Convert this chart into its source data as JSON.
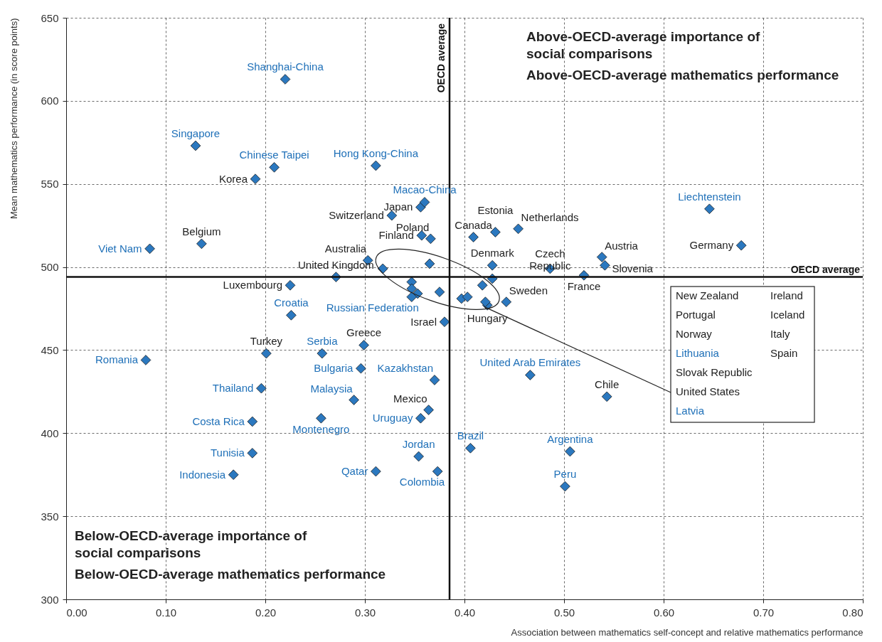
{
  "chart_data": {
    "type": "scatter",
    "xlabel": "Association between mathematics self-concept and relative mathematics performance",
    "ylabel": "Mean mathematics performance (in score points)",
    "annotations": [
      "Above-OECD-average importance of social comparisons",
      "Above-OECD-average mathematics performance",
      "Below-OECD-average importance of social comparisons",
      "Below-OECD-average mathematics performance",
      "New Zealand",
      "Portugal",
      "Norway",
      "Lithuania",
      "Slovak Republic",
      {
        "text": "United States",
        "x": 0.42,
        "y": 476
      },
      "Latvia",
      "Ireland",
      "Iceland",
      "Italy",
      "Spain"
    ],
    "xlim": [
      0,
      0.8
    ],
    "ylim": [
      300,
      650
    ],
    "xticks": [
      {
        "value": 0,
        "label": "0.00"
      },
      {
        "value": 0.1,
        "label": "0.10"
      },
      {
        "value": 0.2,
        "label": "0.20"
      },
      {
        "value": 0.3,
        "label": "0.30"
      },
      {
        "value": 0.4,
        "label": "0.40"
      },
      {
        "value": 0.5,
        "label": "0.50"
      },
      {
        "value": 0.6,
        "label": "0.60"
      },
      {
        "value": 0.7,
        "label": "0.70"
      },
      {
        "value": 0.8,
        "label": "0.80"
      }
    ],
    "yticks": [
      300,
      350,
      400,
      450,
      500,
      550,
      600,
      650
    ],
    "grid": true,
    "marker": "diamond",
    "ref_lines": [
      {
        "axis": "x",
        "value": 0.385,
        "label": "OECD average"
      },
      {
        "axis": "y",
        "value": 494,
        "label": "OECD average"
      }
    ],
    "series": [
      {
        "color": "#2b78bf",
        "x": [
          0.19,
          0.356,
          0.327,
          0.366,
          0.357,
          0.409,
          0.431,
          0.454,
          0.136,
          0.303,
          0.271,
          0.225,
          0.428,
          0.486,
          0.538,
          0.541,
          0.52,
          0.678,
          0.38,
          0.423,
          0.442,
          0.201,
          0.299,
          0.364,
          0.543,
          0.318,
          0.365,
          0.347,
          0.347,
          0.353,
          0.375,
          0.397,
          0.403,
          0.418
        ],
        "values": [
          553,
          536,
          531,
          517,
          519,
          518,
          521,
          523,
          514,
          504,
          494,
          489,
          501,
          499,
          506,
          501,
          495,
          513,
          467,
          477,
          479,
          448,
          453,
          414,
          422,
          499,
          502,
          491,
          487,
          484,
          485,
          481,
          482,
          489
        ],
        "value_labels": [
          "Korea",
          "Japan",
          "Switzerland",
          "Poland",
          "Finland",
          "Canada",
          "Estonia",
          "Netherlands",
          "Belgium",
          "Australia",
          "United Kingdom",
          "Luxembourg",
          "Denmark",
          "Czech Republic",
          "Austria",
          "Slovenia",
          "France",
          "Germany",
          "Israel",
          "Hungary",
          "Sweden",
          "Turkey",
          "Greece",
          "Mexico",
          "Chile",
          null,
          null,
          null,
          null,
          null,
          null,
          null,
          null,
          null
        ]
      },
      {
        "color": "#2b78bf",
        "x": [
          0.22,
          0.13,
          0.209,
          0.311,
          0.36,
          0.084,
          0.226,
          0.347,
          0.257,
          0.08,
          0.296,
          0.37,
          0.466,
          0.196,
          0.289,
          0.187,
          0.256,
          0.356,
          0.187,
          0.168,
          0.354,
          0.311,
          0.373,
          0.406,
          0.506,
          0.501,
          0.646,
          0.421,
          0.428
        ],
        "values": [
          613,
          573,
          560,
          561,
          539,
          511,
          471,
          482,
          448,
          444,
          439,
          432,
          435,
          427,
          420,
          407,
          409,
          409,
          388,
          375,
          386,
          377,
          377,
          391,
          389,
          368,
          535,
          479,
          493
        ],
        "value_labels": [
          "Shanghai-China",
          "Singapore",
          "Chinese Taipei",
          "Hong Kong-China",
          "Macao-China",
          "Viet Nam",
          "Croatia",
          "Russian Federation",
          "Serbia",
          "Romania",
          "Bulgaria",
          "Kazakhstan",
          "United Arab Emirates",
          "Thailand",
          "Malaysia",
          "Costa Rica",
          "Montenegro",
          "Uruguay",
          "Tunisia",
          "Indonesia",
          "Jordan",
          "Qatar",
          "Colombia",
          "Brazil",
          "Argentina",
          "Peru",
          "Liechtenstein",
          null,
          null
        ]
      }
    ]
  }
}
